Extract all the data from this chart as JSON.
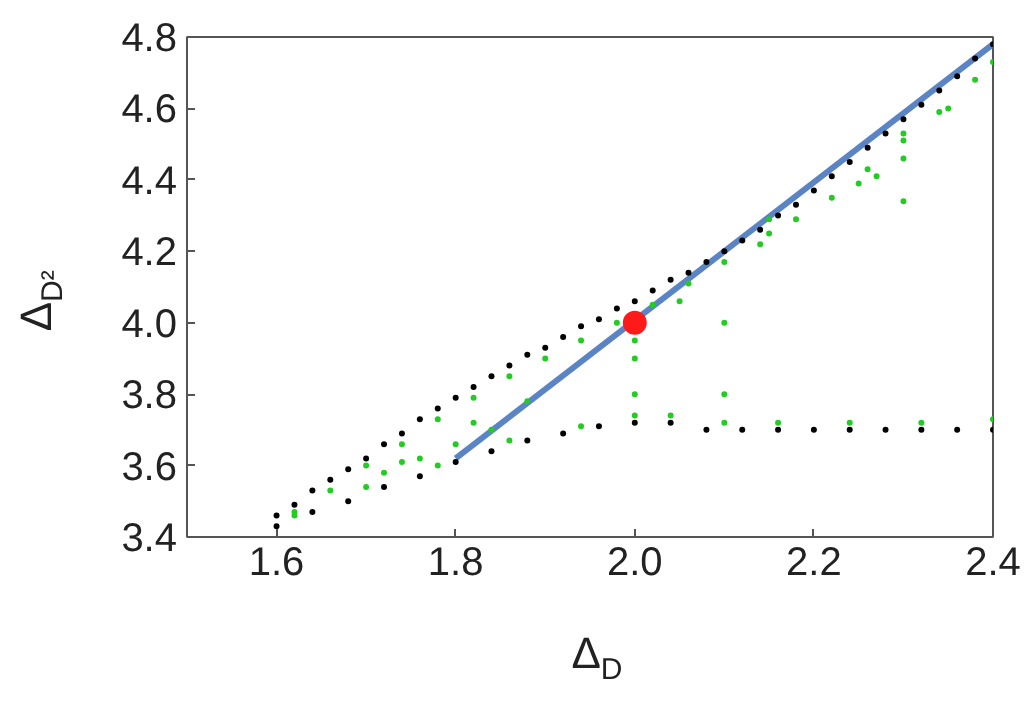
{
  "chart_data": {
    "type": "scatter",
    "xlabel": "Δ$_{D}$",
    "ylabel": "Δ$_{D²}$",
    "xlim": [
      1.5,
      2.4
    ],
    "ylim": [
      3.4,
      4.8
    ],
    "xticks": [
      1.6,
      1.8,
      {
        "value": 2,
        "label": "2.0"
      },
      2.2,
      2.4
    ],
    "yticks": [
      3.4,
      3.6,
      3.8,
      {
        "value": 4,
        "label": "4.0"
      },
      4.2,
      4.4,
      4.6,
      4.8
    ],
    "grid": false,
    "marker": "circle",
    "series": [
      {
        "color": "#000000",
        "x": [
          1.6,
          1.62,
          1.64,
          1.66,
          1.68,
          1.7,
          1.72,
          1.74,
          1.76,
          1.78,
          1.8,
          1.82,
          1.84,
          1.86,
          1.88,
          1.9,
          1.92,
          1.94,
          1.96,
          1.98,
          2.0,
          2.02,
          2.04,
          2.06,
          2.08,
          2.1,
          2.12,
          2.14,
          2.16,
          2.18,
          2.2,
          2.22,
          2.24,
          2.26,
          2.28,
          2.3,
          2.32,
          2.34,
          2.36,
          2.38,
          2.4,
          1.6,
          1.64,
          1.68,
          1.72,
          1.76,
          1.8,
          1.84,
          1.88,
          1.92,
          1.96,
          2.0,
          2.04,
          2.08,
          2.12,
          2.16,
          2.2,
          2.24,
          2.28,
          2.32,
          2.36,
          2.4
        ],
        "values": [
          3.46,
          3.49,
          3.53,
          3.56,
          3.59,
          3.62,
          3.66,
          3.69,
          3.73,
          3.76,
          3.79,
          3.82,
          3.85,
          3.88,
          3.91,
          3.93,
          3.96,
          3.99,
          4.01,
          4.04,
          4.06,
          4.09,
          4.12,
          4.14,
          4.17,
          4.2,
          4.23,
          4.26,
          4.3,
          4.33,
          4.37,
          4.41,
          4.45,
          4.49,
          4.53,
          4.57,
          4.61,
          4.65,
          4.69,
          4.74,
          4.78,
          3.43,
          3.47,
          3.5,
          3.54,
          3.57,
          3.61,
          3.64,
          3.67,
          3.69,
          3.71,
          3.72,
          3.72,
          3.7,
          3.7,
          3.7,
          3.7,
          3.7,
          3.7,
          3.7,
          3.7,
          3.7
        ]
      },
      {
        "color": "#22cc22",
        "x": [
          1.62,
          1.66,
          1.7,
          1.74,
          1.78,
          1.82,
          1.86,
          1.9,
          1.94,
          1.98,
          2.02,
          2.06,
          2.1,
          2.14,
          2.18,
          2.22,
          2.26,
          2.3,
          2.34,
          2.38,
          2.4,
          1.62,
          1.7,
          1.78,
          1.86,
          1.94,
          2.0,
          2.04,
          2.1,
          2.16,
          2.24,
          2.32,
          2.4,
          1.72,
          1.74,
          1.76,
          1.8,
          1.82,
          1.84,
          1.88,
          2.0,
          2.0,
          2.0,
          2.05,
          2.1,
          2.1,
          2.15,
          2.15,
          2.25,
          2.27,
          2.3,
          2.3,
          2.3,
          2.35
        ],
        "values": [
          3.47,
          3.53,
          3.6,
          3.66,
          3.73,
          3.79,
          3.85,
          3.9,
          3.95,
          4.0,
          4.05,
          4.11,
          4.17,
          4.22,
          4.29,
          4.35,
          4.43,
          4.51,
          4.59,
          4.68,
          4.73,
          3.46,
          3.54,
          3.6,
          3.67,
          3.71,
          3.74,
          3.74,
          3.72,
          3.72,
          3.72,
          3.72,
          3.73,
          3.58,
          3.61,
          3.62,
          3.66,
          3.72,
          3.7,
          3.78,
          3.95,
          3.9,
          3.8,
          4.06,
          4.0,
          3.8,
          4.25,
          4.29,
          4.39,
          4.41,
          4.34,
          4.46,
          4.53,
          4.6
        ]
      },
      {
        "type": "line",
        "marker": "none",
        "color": "#5b84c4",
        "x": [
          1.8,
          2.4
        ],
        "values": [
          3.62,
          4.78
        ]
      },
      {
        "color": "#ff1a1a",
        "x": [
          2.0
        ],
        "values": [
          4.0
        ]
      }
    ]
  }
}
